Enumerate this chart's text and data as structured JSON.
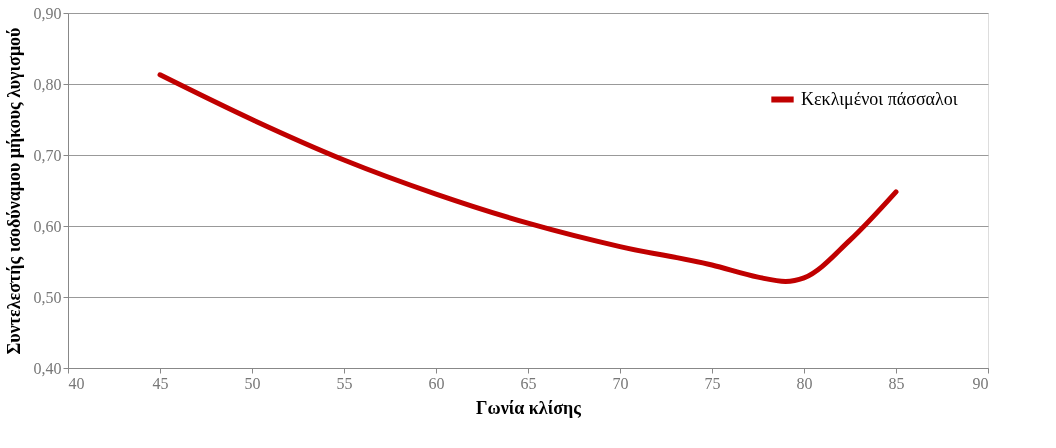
{
  "chart_data": {
    "type": "line",
    "xlabel": "Γωνία κλίσης",
    "ylabel": "Συντελεστής ισοδύναμου μήκους λυγισμού",
    "x": [
      45,
      50,
      55,
      60,
      65,
      70,
      75,
      77.5,
      79,
      80,
      82.5,
      85
    ],
    "series": [
      {
        "name": "Κεκλιμένοι πάσσαλοι",
        "color": "#c00000",
        "values": [
          0.813,
          0.75,
          0.693,
          0.645,
          0.604,
          0.571,
          0.545,
          0.528,
          0.522,
          0.527,
          0.58,
          0.648
        ]
      }
    ],
    "xlim": [
      40,
      90
    ],
    "xticks": [
      40,
      45,
      50,
      55,
      60,
      65,
      70,
      75,
      80,
      85,
      90
    ],
    "ylim": [
      0.4,
      0.9
    ],
    "yticks": [
      {
        "value": 0.4,
        "label": "0,40"
      },
      {
        "value": 0.5,
        "label": "0,50"
      },
      {
        "value": 0.6,
        "label": "0,60"
      },
      {
        "value": 0.7,
        "label": "0,70"
      },
      {
        "value": 0.8,
        "label": "0,80"
      },
      {
        "value": 0.9,
        "label": "0,90"
      }
    ],
    "grid": "y",
    "legend": "top right",
    "marker": "none",
    "line_style": "solid"
  }
}
